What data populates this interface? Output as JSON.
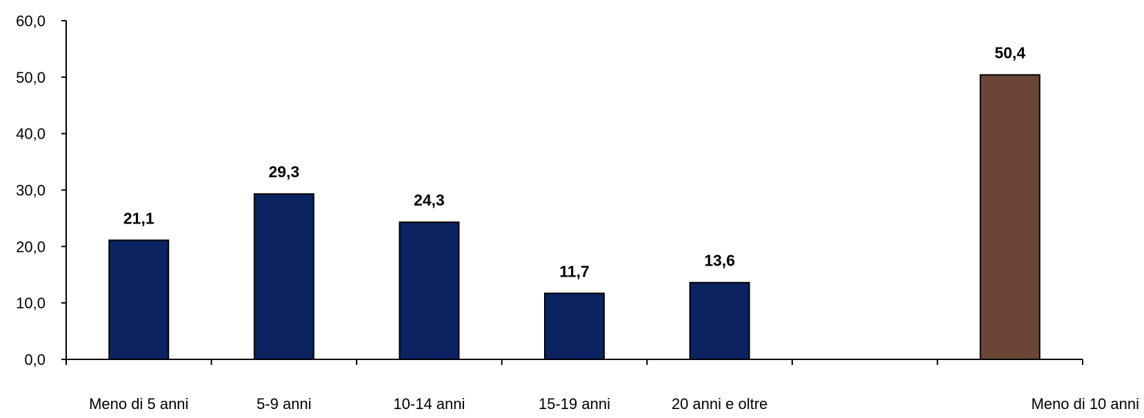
{
  "chart_data": {
    "type": "bar",
    "categories": [
      "Meno di 5 anni",
      "5-9 anni",
      "10-14 anni",
      "15-19 anni",
      "20 anni e oltre",
      "",
      "Meno di 10 anni"
    ],
    "values": [
      21.1,
      29.3,
      24.3,
      11.7,
      13.6,
      null,
      50.4
    ],
    "value_labels": [
      "21,1",
      "29,3",
      "24,3",
      "11,7",
      "13,6",
      "",
      "50,4"
    ],
    "bar_colors": [
      "#0b2361",
      "#0b2361",
      "#0b2361",
      "#0b2361",
      "#0b2361",
      "",
      "#6b4636"
    ],
    "ylim": [
      0,
      60
    ],
    "yticks": [
      0,
      10,
      20,
      30,
      40,
      50,
      60
    ],
    "ytick_labels": [
      "0,0",
      "10,0",
      "20,0",
      "30,0",
      "40,0",
      "50,0",
      "60,0"
    ],
    "grid": false,
    "legend": "none"
  }
}
